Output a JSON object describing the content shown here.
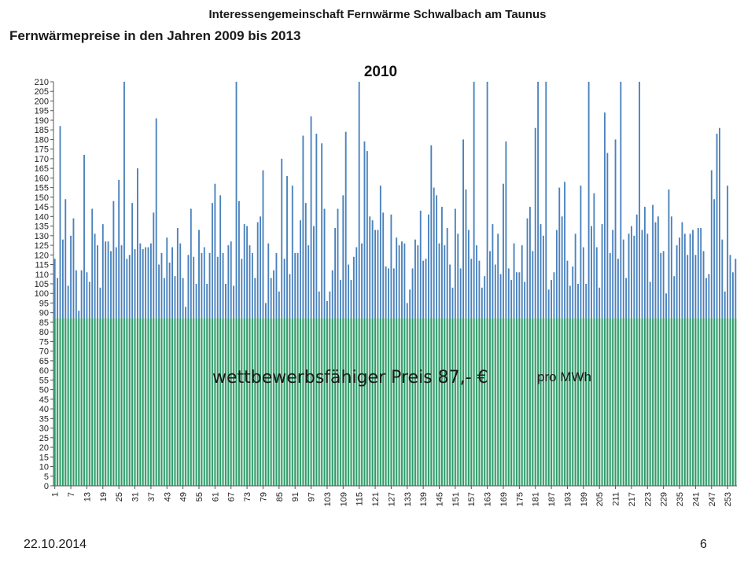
{
  "header": {
    "organization": "Interessengemeinschaft Fernwärme Schwalbach am Taunus",
    "title": "Fernwärmepreise in den Jahren 2009 bis 2013"
  },
  "footer": {
    "date": "22.10.2014",
    "page_number": "6"
  },
  "colors": {
    "bar_upper": "#4a82bd",
    "bar_lower": "#2f9a6a",
    "band_fill": "#d6efe0"
  },
  "chart_data": {
    "type": "bar",
    "title": "2010",
    "xlabel": "",
    "ylabel": "",
    "ylim": [
      0,
      210
    ],
    "y_tick_step": 5,
    "grid": false,
    "categories": [
      1,
      2,
      3,
      4,
      5,
      6,
      7,
      8,
      9,
      10,
      11,
      12,
      13,
      14,
      15,
      16,
      17,
      18,
      19,
      20,
      21,
      22,
      23,
      24,
      25,
      26,
      27,
      28,
      29,
      30,
      31,
      32,
      33,
      34,
      35,
      36,
      37,
      38,
      39,
      40,
      41,
      42,
      43,
      44,
      45,
      46,
      47,
      48,
      49,
      50,
      51,
      52,
      53,
      54,
      55,
      56,
      57,
      58,
      59,
      60,
      61,
      62,
      63,
      64,
      65,
      66,
      67,
      68,
      69,
      70,
      71,
      72,
      73,
      74,
      75,
      76,
      77,
      78,
      79,
      80,
      81,
      82,
      83,
      84,
      85,
      86,
      87,
      88,
      89,
      90,
      91,
      92,
      93,
      94,
      95,
      96,
      97,
      98,
      99,
      100,
      101,
      102,
      103,
      104,
      105,
      106,
      107,
      108,
      109,
      110,
      111,
      112,
      113,
      114,
      115,
      116,
      117,
      118,
      119,
      120,
      121,
      122,
      123,
      124,
      125,
      126,
      127,
      128,
      129,
      130,
      131,
      132,
      133,
      134,
      135,
      136,
      137,
      138,
      139,
      140,
      141,
      142,
      143,
      144,
      145,
      146,
      147,
      148,
      149,
      150,
      151,
      152,
      153,
      154,
      155,
      156,
      157,
      158,
      159,
      160,
      161,
      162,
      163,
      164,
      165,
      166,
      167,
      168,
      169,
      170,
      171,
      172,
      173,
      174,
      175,
      176,
      177,
      178,
      179,
      180,
      181,
      182,
      183,
      184,
      185,
      186,
      187,
      188,
      189,
      190,
      191,
      192,
      193,
      194,
      195,
      196,
      197,
      198,
      199,
      200,
      201,
      202,
      203,
      204,
      205,
      206,
      207,
      208,
      209,
      210,
      211,
      212,
      213,
      214,
      215,
      216,
      217,
      218,
      219,
      220,
      221,
      222,
      223,
      224,
      225,
      226,
      227,
      228,
      229,
      230,
      231,
      232,
      233,
      234,
      235,
      236,
      237,
      238,
      239,
      240,
      241,
      242,
      243,
      244,
      245,
      246,
      247,
      248,
      249,
      250,
      251,
      252,
      253,
      254,
      255,
      256
    ],
    "x_tick_labels": [
      "1",
      "7",
      "13",
      "19",
      "25",
      "31",
      "37",
      "43",
      "49",
      "55",
      "61",
      "67",
      "73",
      "79",
      "85",
      "91",
      "97",
      "103",
      "109",
      "115",
      "121",
      "127",
      "133",
      "139",
      "145",
      "151",
      "157",
      "163",
      "169",
      "175",
      "181",
      "187",
      "193",
      "199",
      "205",
      "211",
      "217",
      "223",
      "229",
      "235",
      "241",
      "247",
      "253"
    ],
    "values": [
      118,
      108,
      187,
      128,
      149,
      104,
      130,
      139,
      112,
      91,
      112,
      172,
      111,
      106,
      144,
      131,
      125,
      103,
      136,
      127,
      127,
      122,
      148,
      124,
      159,
      125,
      210,
      118,
      120,
      147,
      123,
      165,
      126,
      123,
      124,
      124,
      126,
      142,
      191,
      115,
      121,
      108,
      129,
      116,
      124,
      109,
      134,
      126,
      108,
      93,
      120,
      144,
      119,
      105,
      133,
      121,
      124,
      105,
      121,
      147,
      157,
      119,
      151,
      121,
      105,
      125,
      127,
      104,
      210,
      148,
      118,
      136,
      135,
      125,
      121,
      108,
      137,
      140,
      164,
      95,
      126,
      108,
      112,
      121,
      101,
      170,
      118,
      161,
      110,
      156,
      121,
      121,
      138,
      182,
      147,
      125,
      192,
      135,
      183,
      101,
      178,
      144,
      96,
      101,
      112,
      134,
      144,
      107,
      151,
      184,
      115,
      107,
      119,
      124,
      210,
      126,
      179,
      174,
      140,
      138,
      133,
      133,
      156,
      142,
      114,
      113,
      141,
      113,
      129,
      125,
      127,
      126,
      95,
      102,
      113,
      128,
      125,
      143,
      117,
      118,
      141,
      177,
      155,
      151,
      126,
      145,
      125,
      134,
      115,
      103,
      144,
      131,
      113,
      180,
      154,
      133,
      118,
      210,
      125,
      117,
      103,
      109,
      210,
      122,
      136,
      115,
      131,
      110,
      157,
      179,
      113,
      107,
      126,
      111,
      111,
      125,
      106,
      139,
      145,
      122,
      186,
      210,
      136,
      130,
      210,
      102,
      107,
      111,
      133,
      155,
      140,
      158,
      117,
      104,
      114,
      131,
      105,
      156,
      124,
      105,
      210,
      135,
      152,
      124,
      103,
      136,
      194,
      173,
      121,
      133,
      180,
      118,
      210,
      128,
      108,
      131,
      135,
      130,
      141,
      210,
      133,
      145,
      131,
      106,
      146,
      137,
      140,
      121,
      122,
      100,
      154,
      140,
      109,
      125,
      129,
      137,
      131,
      120,
      131,
      133,
      120,
      134,
      134,
      122,
      108,
      110,
      164,
      149,
      183,
      186,
      128,
      101,
      156,
      120,
      111,
      118
    ],
    "annotation": {
      "text": "wettbewerbsfähiger Preis  87,- €",
      "unit": "pro MWh",
      "level": 87
    }
  }
}
